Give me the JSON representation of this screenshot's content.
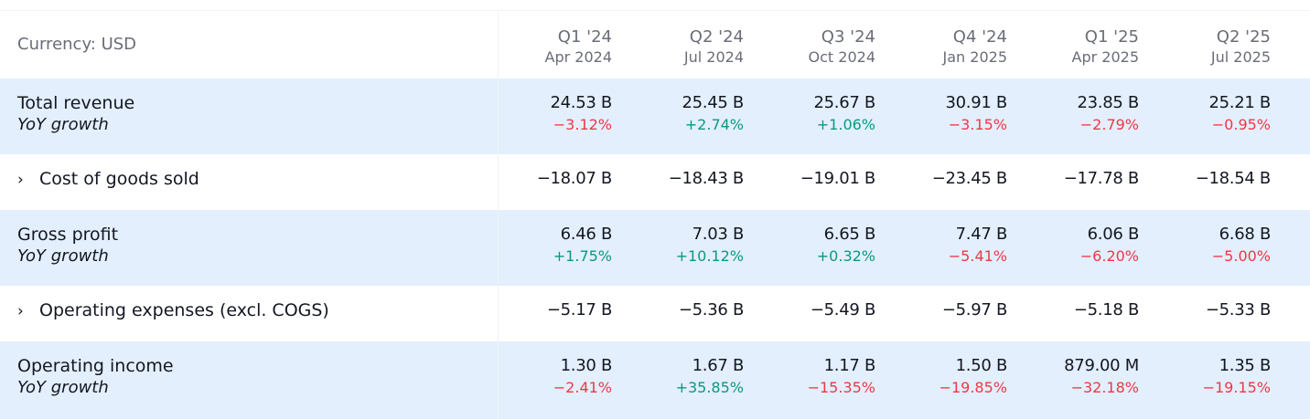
{
  "header": {
    "currency_label": "Currency: USD",
    "columns": [
      {
        "quarter": "Q1 '24",
        "date": "Apr 2024"
      },
      {
        "quarter": "Q2 '24",
        "date": "Jul 2024"
      },
      {
        "quarter": "Q3 '24",
        "date": "Oct 2024"
      },
      {
        "quarter": "Q4 '24",
        "date": "Jan 2025"
      },
      {
        "quarter": "Q1 '25",
        "date": "Apr 2025"
      },
      {
        "quarter": "Q2 '25",
        "date": "Jul 2025"
      }
    ]
  },
  "rows": [
    {
      "label": "Total revenue",
      "sub_label": "YoY growth",
      "values": [
        "24.53 B",
        "25.45 B",
        "25.67 B",
        "30.91 B",
        "23.85 B",
        "25.21 B"
      ],
      "growth": [
        "−3.12%",
        "+2.74%",
        "+1.06%",
        "−3.15%",
        "−2.79%",
        "−0.95%"
      ]
    },
    {
      "label": "Cost of goods sold",
      "expand_icon": "chevron-right-icon",
      "values": [
        "−18.07 B",
        "−18.43 B",
        "−19.01 B",
        "−23.45 B",
        "−17.78 B",
        "−18.54 B"
      ]
    },
    {
      "label": "Gross profit",
      "sub_label": "YoY growth",
      "values": [
        "6.46 B",
        "7.03 B",
        "6.65 B",
        "7.47 B",
        "6.06 B",
        "6.68 B"
      ],
      "growth": [
        "+1.75%",
        "+10.12%",
        "+0.32%",
        "−5.41%",
        "−6.20%",
        "−5.00%"
      ]
    },
    {
      "label": "Operating expenses (excl. COGS)",
      "expand_icon": "chevron-right-icon",
      "values": [
        "−5.17 B",
        "−5.36 B",
        "−5.49 B",
        "−5.97 B",
        "−5.18 B",
        "−5.33 B"
      ]
    },
    {
      "label": "Operating income",
      "sub_label": "YoY growth",
      "values": [
        "1.30 B",
        "1.67 B",
        "1.17 B",
        "1.50 B",
        "879.00 M",
        "1.35 B"
      ],
      "growth": [
        "−2.41%",
        "+35.85%",
        "−15.35%",
        "−19.85%",
        "−32.18%",
        "−19.15%"
      ]
    }
  ],
  "colors": {
    "positive": "#089981",
    "negative": "#f23645",
    "row_highlight": "#e3effd",
    "header_text": "#6a6d78"
  }
}
